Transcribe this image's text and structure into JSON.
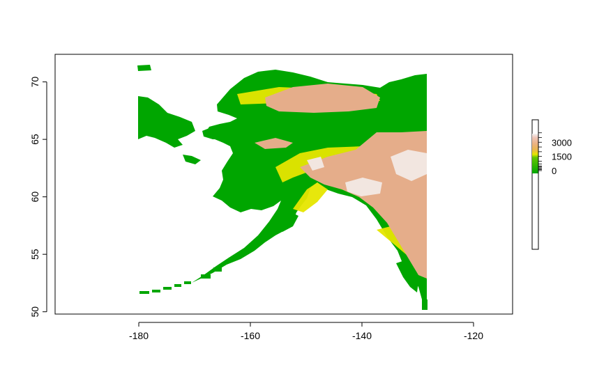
{
  "map": {
    "type": "raster-elevation",
    "region": "Alaska",
    "x_ticks": [
      {
        "value": -180,
        "label": "-180"
      },
      {
        "value": -160,
        "label": "-160"
      },
      {
        "value": -140,
        "label": "-140"
      },
      {
        "value": -120,
        "label": "-120"
      }
    ],
    "y_ticks": [
      {
        "value": 50,
        "label": "50"
      },
      {
        "value": 55,
        "label": "55"
      },
      {
        "value": 60,
        "label": "60"
      },
      {
        "value": 65,
        "label": "65"
      },
      {
        "value": 70,
        "label": "70"
      }
    ],
    "xlim": [
      -195,
      -113
    ],
    "ylim": [
      49.8,
      72.4
    ],
    "colors": {
      "lowland": "#00A600",
      "mid": "#E6E600",
      "highland": "#EAB64E",
      "mountain": "#EEB99F",
      "peak": "#F2F2F2",
      "frame": "#000000"
    }
  },
  "legend": {
    "labels": [
      {
        "value": 3000,
        "label": "3000"
      },
      {
        "value": 1500,
        "label": "1500"
      },
      {
        "value": 0,
        "label": "0"
      }
    ]
  }
}
